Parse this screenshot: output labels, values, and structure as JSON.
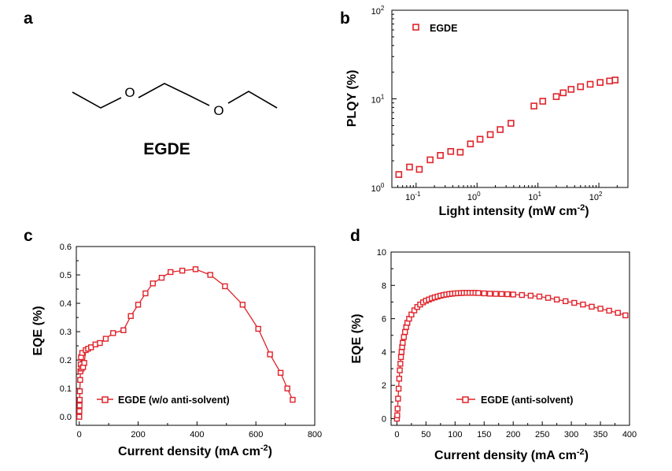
{
  "panel_labels": {
    "a": "a",
    "b": "b",
    "c": "c",
    "d": "d"
  },
  "molecule": {
    "name": "EGDE",
    "atom_o1": "O",
    "atom_o2": "O"
  },
  "colors": {
    "series": "#e0232a",
    "axis": "#000000"
  },
  "chart_data": [
    {
      "id": "b",
      "type": "scatter",
      "xscale": "log",
      "yscale": "log",
      "xlim": [
        0.04,
        300
      ],
      "ylim": [
        1,
        100
      ],
      "xlabel": "Light intensity (mW cm",
      "xlabel_sup": "-2",
      "xlabel_end": ")",
      "ylabel": "PLQY (%)",
      "x_ticks": [
        {
          "base": "10",
          "exp": "-1",
          "value": 0.1
        },
        {
          "base": "10",
          "exp": "0",
          "value": 1
        },
        {
          "base": "10",
          "exp": "1",
          "value": 10
        },
        {
          "base": "10",
          "exp": "2",
          "value": 100
        }
      ],
      "y_ticks": [
        {
          "base": "10",
          "exp": "0",
          "value": 1
        },
        {
          "base": "10",
          "exp": "1",
          "value": 10
        },
        {
          "base": "10",
          "exp": "2",
          "value": 100
        }
      ],
      "legend": "EGDE",
      "legend_position": "top-left",
      "series": [
        {
          "name": "EGDE",
          "x": [
            0.052,
            0.078,
            0.113,
            0.17,
            0.25,
            0.37,
            0.53,
            0.78,
            1.12,
            1.65,
            2.4,
            3.6,
            8.6,
            12,
            20,
            26,
            35,
            50,
            72,
            105,
            150,
            185
          ],
          "y": [
            1.4,
            1.7,
            1.6,
            2.05,
            2.3,
            2.55,
            2.5,
            3.1,
            3.5,
            3.95,
            4.5,
            5.3,
            8.3,
            9.4,
            10.6,
            11.7,
            12.8,
            13.7,
            14.6,
            15.3,
            15.9,
            16.3
          ]
        }
      ]
    },
    {
      "id": "c",
      "type": "line",
      "xlim": [
        -10,
        800
      ],
      "ylim": [
        -0.03,
        0.6
      ],
      "xlabel": "Current density (mA cm",
      "xlabel_sup": "-2",
      "xlabel_end": ")",
      "ylabel": "EQE (%)",
      "x_ticks": [
        "0",
        "200",
        "400",
        "600",
        "800"
      ],
      "y_ticks": [
        "0.0",
        "0.1",
        "0.2",
        "0.3",
        "0.4",
        "0.5",
        "0.6"
      ],
      "legend": "EGDE (w/o anti-solvent)",
      "legend_position": "bottom-left",
      "series": [
        {
          "name": "EGDE (w/o anti-solvent)",
          "x": [
            0,
            0.5,
            1,
            1.5,
            2,
            3,
            4,
            5,
            6,
            8,
            10,
            13,
            17,
            22,
            30,
            40,
            55,
            70,
            90,
            115,
            150,
            175,
            200,
            225,
            250,
            280,
            310,
            350,
            395,
            445,
            495,
            555,
            608,
            648,
            684,
            707,
            725
          ],
          "y": [
            0.0,
            0.02,
            0.04,
            0.06,
            0.09,
            0.13,
            0.16,
            0.185,
            0.21,
            0.17,
            0.225,
            0.175,
            0.19,
            0.235,
            0.24,
            0.245,
            0.255,
            0.26,
            0.275,
            0.295,
            0.305,
            0.355,
            0.395,
            0.435,
            0.47,
            0.49,
            0.51,
            0.515,
            0.52,
            0.5,
            0.46,
            0.395,
            0.31,
            0.22,
            0.155,
            0.1,
            0.06
          ]
        }
      ]
    },
    {
      "id": "d",
      "type": "line",
      "xlim": [
        -10,
        400
      ],
      "ylim": [
        -0.4,
        10
      ],
      "xlabel": "Current density (mA cm",
      "xlabel_sup": "-2",
      "xlabel_end": ")",
      "ylabel": "EQE (%)",
      "x_ticks": [
        "0",
        "50",
        "100",
        "150",
        "200",
        "250",
        "300",
        "350",
        "400"
      ],
      "y_ticks": [
        "0",
        "2",
        "4",
        "6",
        "8",
        "10"
      ],
      "legend": "EGDE (anti-solvent)",
      "legend_position": "bottom-right",
      "series": [
        {
          "name": "EGDE (anti-solvent)",
          "x": [
            0,
            0.6,
            1.2,
            2,
            3,
            4,
            5,
            6,
            7,
            8,
            9,
            10,
            12,
            14,
            16,
            18,
            21,
            25,
            30,
            35,
            40,
            45,
            50,
            55,
            60,
            65,
            70,
            75,
            80,
            85,
            90,
            95,
            100,
            105,
            110,
            115,
            120,
            125,
            130,
            135,
            140,
            150,
            160,
            170,
            180,
            190,
            200,
            215,
            230,
            245,
            260,
            275,
            290,
            305,
            320,
            335,
            350,
            365,
            380,
            393
          ],
          "y": [
            0.0,
            0.2,
            0.6,
            1.2,
            1.8,
            2.4,
            2.9,
            3.3,
            3.7,
            4.0,
            4.3,
            4.55,
            4.9,
            5.2,
            5.5,
            5.75,
            6.0,
            6.25,
            6.5,
            6.7,
            6.85,
            6.98,
            7.08,
            7.15,
            7.22,
            7.28,
            7.33,
            7.38,
            7.42,
            7.45,
            7.48,
            7.5,
            7.52,
            7.53,
            7.54,
            7.55,
            7.55,
            7.55,
            7.55,
            7.55,
            7.54,
            7.52,
            7.5,
            7.49,
            7.48,
            7.47,
            7.45,
            7.42,
            7.38,
            7.33,
            7.25,
            7.15,
            7.05,
            6.95,
            6.85,
            6.72,
            6.6,
            6.48,
            6.35,
            6.2
          ]
        }
      ]
    }
  ]
}
